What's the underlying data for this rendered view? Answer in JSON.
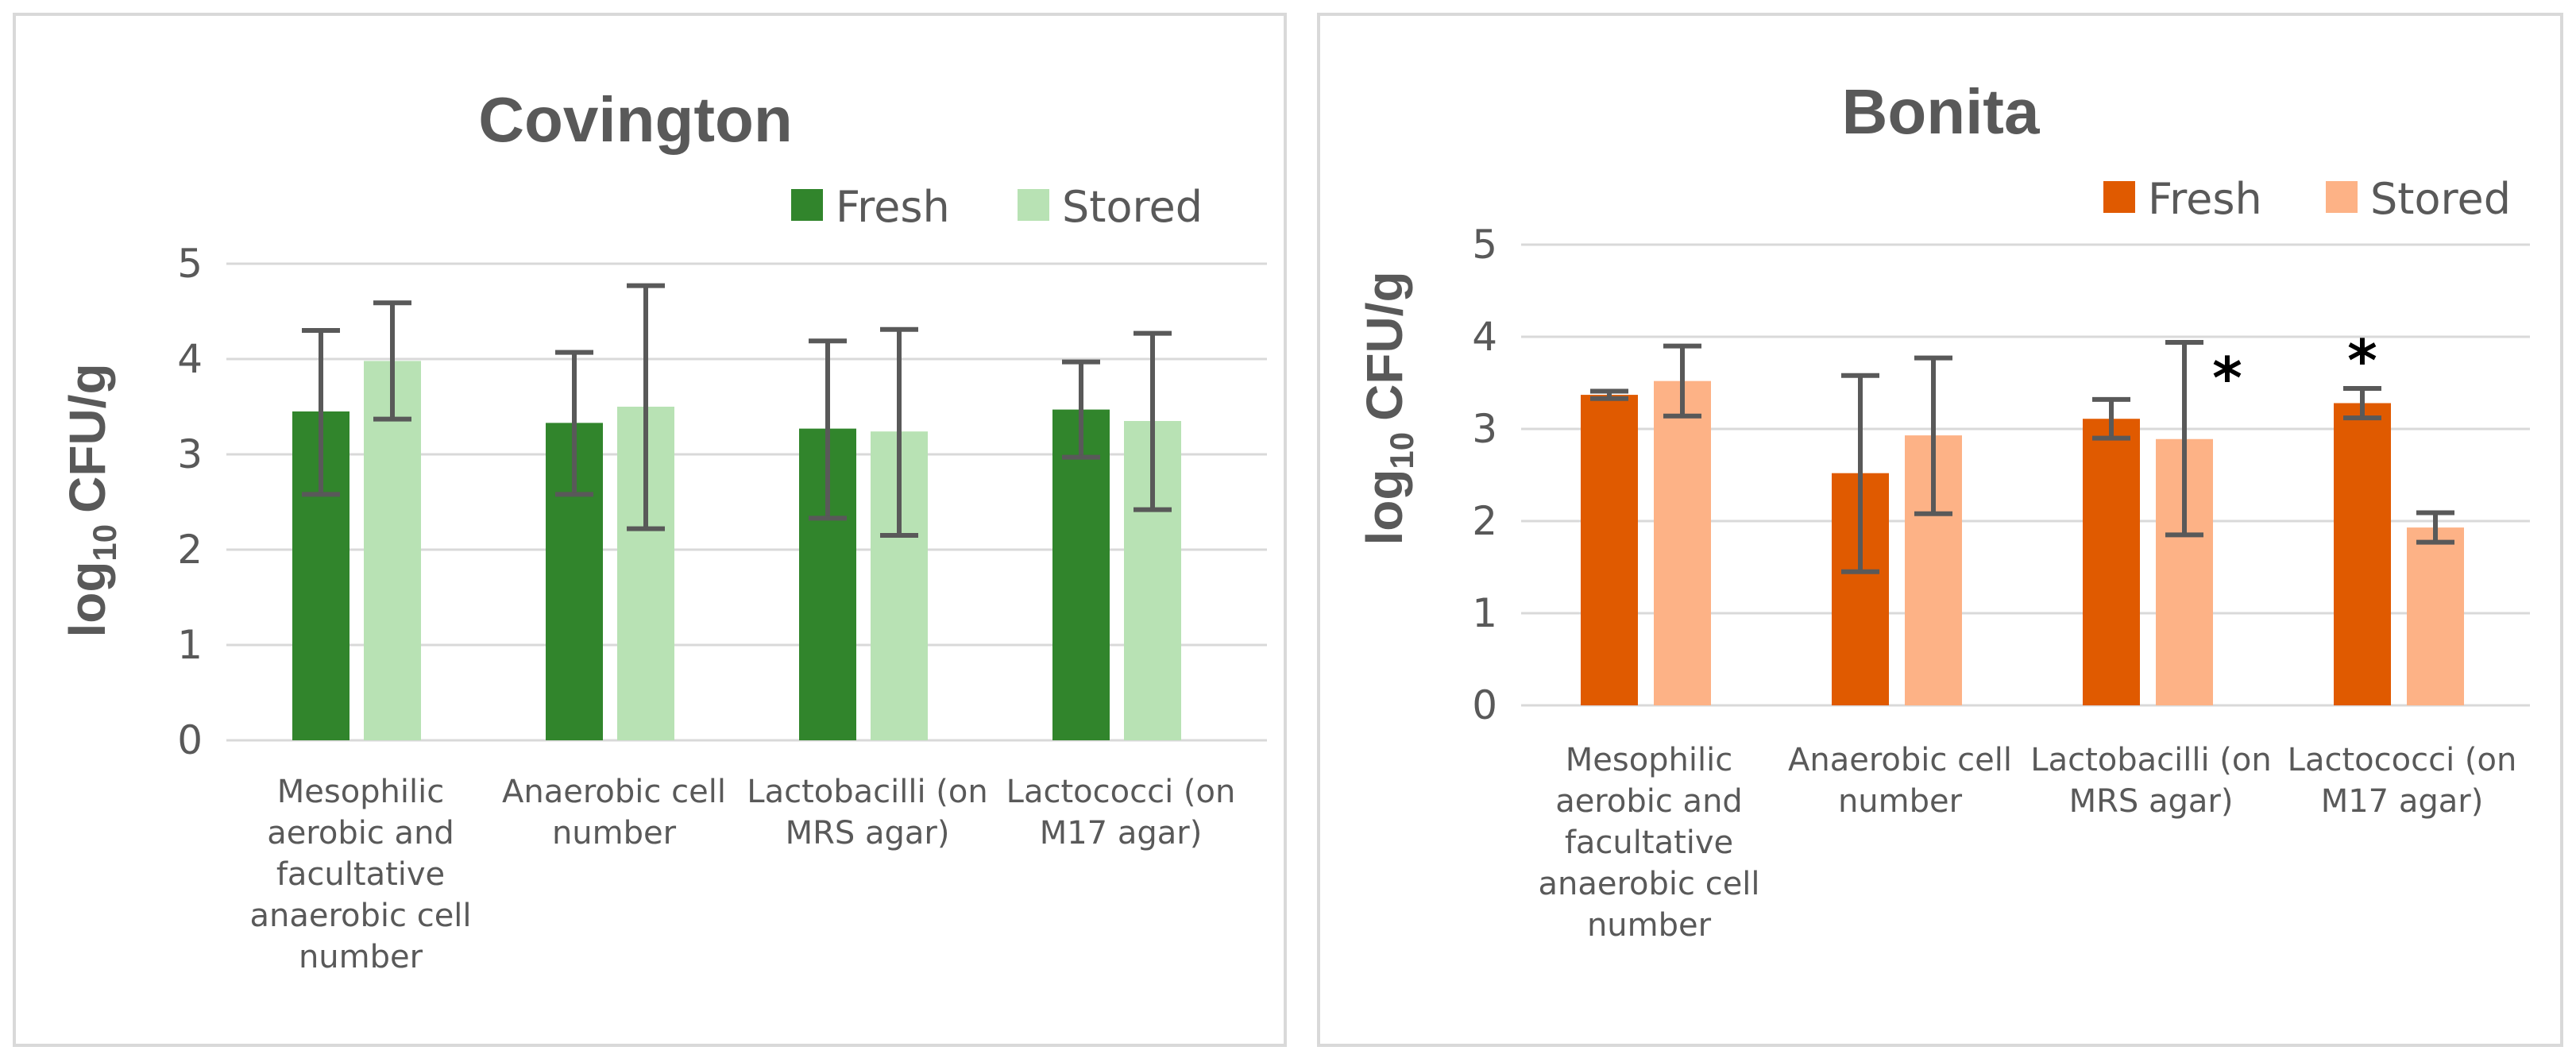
{
  "chart_data": [
    {
      "type": "bar",
      "title": "Covington",
      "ylabel": "log10 CFU/g",
      "ylabel_base": "log",
      "ylabel_sub": "10",
      "ylabel_unit": "CFU/g",
      "ylim": [
        0,
        5
      ],
      "yticks": [
        "0",
        "1",
        "2",
        "3",
        "4",
        "5"
      ],
      "categories": [
        [
          "Mesophilic",
          "aerobic and",
          "facultative",
          "anaerobic cell",
          "number"
        ],
        [
          "Anaerobic cell",
          "number"
        ],
        [
          "Lactobacilli (on",
          "MRS agar)"
        ],
        [
          "Lactococci (on",
          "M17 agar)"
        ]
      ],
      "series": [
        {
          "name": "Fresh",
          "color": "#31852c",
          "values": [
            3.45,
            3.33,
            3.27,
            3.47
          ],
          "err_low": [
            2.58,
            2.58,
            2.33,
            2.97
          ],
          "err_high": [
            4.3,
            4.07,
            4.19,
            3.97
          ],
          "marks": [
            "",
            "",
            "",
            ""
          ]
        },
        {
          "name": "Stored",
          "color": "#b8e2b4",
          "values": [
            3.98,
            3.5,
            3.24,
            3.35
          ],
          "err_low": [
            3.37,
            2.22,
            2.15,
            2.42
          ],
          "err_high": [
            4.59,
            4.77,
            4.31,
            4.27
          ],
          "marks": [
            "",
            "",
            "",
            ""
          ]
        }
      ]
    },
    {
      "type": "bar",
      "title": "Bonita",
      "ylabel": "log10 CFU/g",
      "ylabel_base": "log",
      "ylabel_sub": "10",
      "ylabel_unit": "CFU/g",
      "ylim": [
        0,
        5
      ],
      "yticks": [
        "0",
        "1",
        "2",
        "3",
        "4",
        "5"
      ],
      "categories": [
        [
          "Mesophilic",
          "aerobic and",
          "facultative",
          "anaerobic cell",
          "number"
        ],
        [
          "Anaerobic cell",
          "number"
        ],
        [
          "Lactobacilli (on",
          "MRS agar)"
        ],
        [
          "Lactococci (on",
          "M17 agar)"
        ]
      ],
      "series": [
        {
          "name": "Fresh",
          "color": "#e05a00",
          "values": [
            3.37,
            2.52,
            3.11,
            3.28
          ],
          "err_low": [
            3.33,
            1.45,
            2.9,
            3.12
          ],
          "err_high": [
            3.41,
            3.58,
            3.32,
            3.44
          ],
          "marks": [
            "",
            "",
            "",
            "*"
          ]
        },
        {
          "name": "Stored",
          "color": "#fdb286",
          "values": [
            3.52,
            2.93,
            2.89,
            1.93
          ],
          "err_low": [
            3.14,
            2.08,
            1.85,
            1.77
          ],
          "err_high": [
            3.9,
            3.77,
            3.94,
            2.09
          ],
          "marks": [
            "",
            "",
            "*",
            ""
          ]
        }
      ]
    }
  ]
}
